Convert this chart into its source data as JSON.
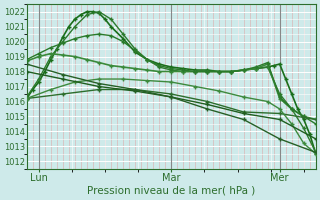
{
  "xlabel": "Pression niveau de la mer( hPa )",
  "bg_color": "#ceeaea",
  "plot_bg": "#ceeaea",
  "grid_color_h": "#ffffff",
  "grid_color_v": "#ddaaaa",
  "ylim": [
    1011.5,
    1022.5
  ],
  "yticks": [
    1012,
    1013,
    1014,
    1015,
    1016,
    1017,
    1018,
    1019,
    1020,
    1021,
    1022
  ],
  "xlim": [
    0,
    48
  ],
  "xtick_positions": [
    2,
    24,
    42
  ],
  "xtick_labels": [
    "Lun",
    "Mar",
    "Mer"
  ],
  "vlines": [
    2,
    24,
    42
  ],
  "series": [
    {
      "x": [
        0,
        1,
        2,
        3,
        4,
        5,
        6,
        7,
        8,
        9,
        10,
        11,
        12,
        13,
        14,
        16,
        18,
        20,
        22,
        24,
        26,
        28,
        30,
        32,
        34,
        36,
        38,
        40,
        41,
        42,
        43,
        44,
        45,
        46,
        47,
        48
      ],
      "y": [
        1016.2,
        1016.8,
        1017.3,
        1018.0,
        1018.8,
        1019.5,
        1020.3,
        1021.0,
        1021.5,
        1021.8,
        1022.0,
        1022.0,
        1021.9,
        1021.5,
        1021.0,
        1020.2,
        1019.3,
        1018.8,
        1018.5,
        1018.3,
        1018.2,
        1018.1,
        1018.1,
        1018.0,
        1018.0,
        1018.1,
        1018.2,
        1018.3,
        1018.4,
        1018.5,
        1017.5,
        1016.5,
        1015.5,
        1014.8,
        1013.8,
        1012.5
      ],
      "color": "#1a6e1a",
      "lw": 1.2,
      "marker": "+",
      "ms": 3.5
    },
    {
      "x": [
        0,
        2,
        4,
        6,
        8,
        10,
        12,
        14,
        16,
        18,
        20,
        22,
        24,
        26,
        28,
        30,
        32,
        34,
        36,
        38,
        40,
        42,
        44,
        46,
        48
      ],
      "y": [
        1016.3,
        1017.5,
        1019.0,
        1020.0,
        1021.0,
        1021.8,
        1022.0,
        1021.5,
        1020.5,
        1019.5,
        1018.8,
        1018.3,
        1018.1,
        1018.0,
        1018.0,
        1018.0,
        1018.0,
        1018.0,
        1018.1,
        1018.2,
        1018.3,
        1016.5,
        1015.5,
        1014.2,
        1012.6
      ],
      "color": "#2d7a2d",
      "lw": 1.0,
      "marker": "+",
      "ms": 3.0
    },
    {
      "x": [
        0,
        2,
        4,
        6,
        8,
        10,
        12,
        14,
        16,
        18,
        20,
        22,
        24,
        26,
        28,
        30,
        32,
        34,
        36,
        38,
        40,
        42,
        44,
        46,
        48
      ],
      "y": [
        1018.7,
        1019.0,
        1019.2,
        1019.1,
        1019.0,
        1018.8,
        1018.6,
        1018.4,
        1018.3,
        1018.2,
        1018.1,
        1018.0,
        1018.0,
        1018.0,
        1018.0,
        1018.0,
        1018.0,
        1018.0,
        1018.1,
        1018.2,
        1018.5,
        1016.2,
        1015.5,
        1015.0,
        1014.8
      ],
      "color": "#3a8a3a",
      "lw": 1.2,
      "marker": "+",
      "ms": 3.0
    },
    {
      "x": [
        0,
        2,
        4,
        6,
        8,
        10,
        12,
        14,
        16,
        18,
        20,
        22,
        24,
        26,
        28,
        30,
        32,
        34,
        36,
        38,
        40,
        42,
        44,
        46,
        48
      ],
      "y": [
        1018.8,
        1019.2,
        1019.6,
        1019.9,
        1020.2,
        1020.4,
        1020.5,
        1020.4,
        1020.0,
        1019.4,
        1018.8,
        1018.4,
        1018.2,
        1018.1,
        1018.0,
        1018.0,
        1018.0,
        1018.0,
        1018.1,
        1018.3,
        1018.6,
        1016.3,
        1015.5,
        1015.0,
        1014.5
      ],
      "color": "#2a7a2a",
      "lw": 1.0,
      "marker": "+",
      "ms": 2.5
    },
    {
      "x": [
        0,
        6,
        12,
        18,
        24,
        30,
        36,
        42,
        48
      ],
      "y": [
        1016.2,
        1016.5,
        1016.8,
        1016.8,
        1016.5,
        1016.0,
        1015.3,
        1015.2,
        1014.8
      ],
      "color": "#2d6e2d",
      "lw": 1.0,
      "marker": "+",
      "ms": 3.0
    },
    {
      "x": [
        0,
        4,
        8,
        12,
        16,
        20,
        24,
        28,
        32,
        36,
        40,
        42,
        44,
        46,
        48
      ],
      "y": [
        1016.2,
        1016.8,
        1017.3,
        1017.5,
        1017.5,
        1017.4,
        1017.3,
        1017.0,
        1016.7,
        1016.3,
        1016.0,
        1015.5,
        1014.5,
        1013.2,
        1012.5
      ],
      "color": "#3d8a3d",
      "lw": 1.0,
      "marker": "+",
      "ms": 2.5
    },
    {
      "x": [
        0,
        6,
        12,
        18,
        24,
        30,
        36,
        42,
        48
      ],
      "y": [
        1018.0,
        1017.5,
        1017.0,
        1016.7,
        1016.3,
        1015.8,
        1015.2,
        1014.8,
        1013.5
      ],
      "color": "#1f5e1f",
      "lw": 1.0,
      "marker": "+",
      "ms": 2.5
    },
    {
      "x": [
        0,
        6,
        12,
        18,
        24,
        30,
        36,
        42,
        48
      ],
      "y": [
        1018.5,
        1017.8,
        1017.2,
        1016.8,
        1016.3,
        1015.5,
        1014.8,
        1013.5,
        1012.6
      ],
      "color": "#266026",
      "lw": 1.0,
      "marker": "+",
      "ms": 2.5
    }
  ]
}
